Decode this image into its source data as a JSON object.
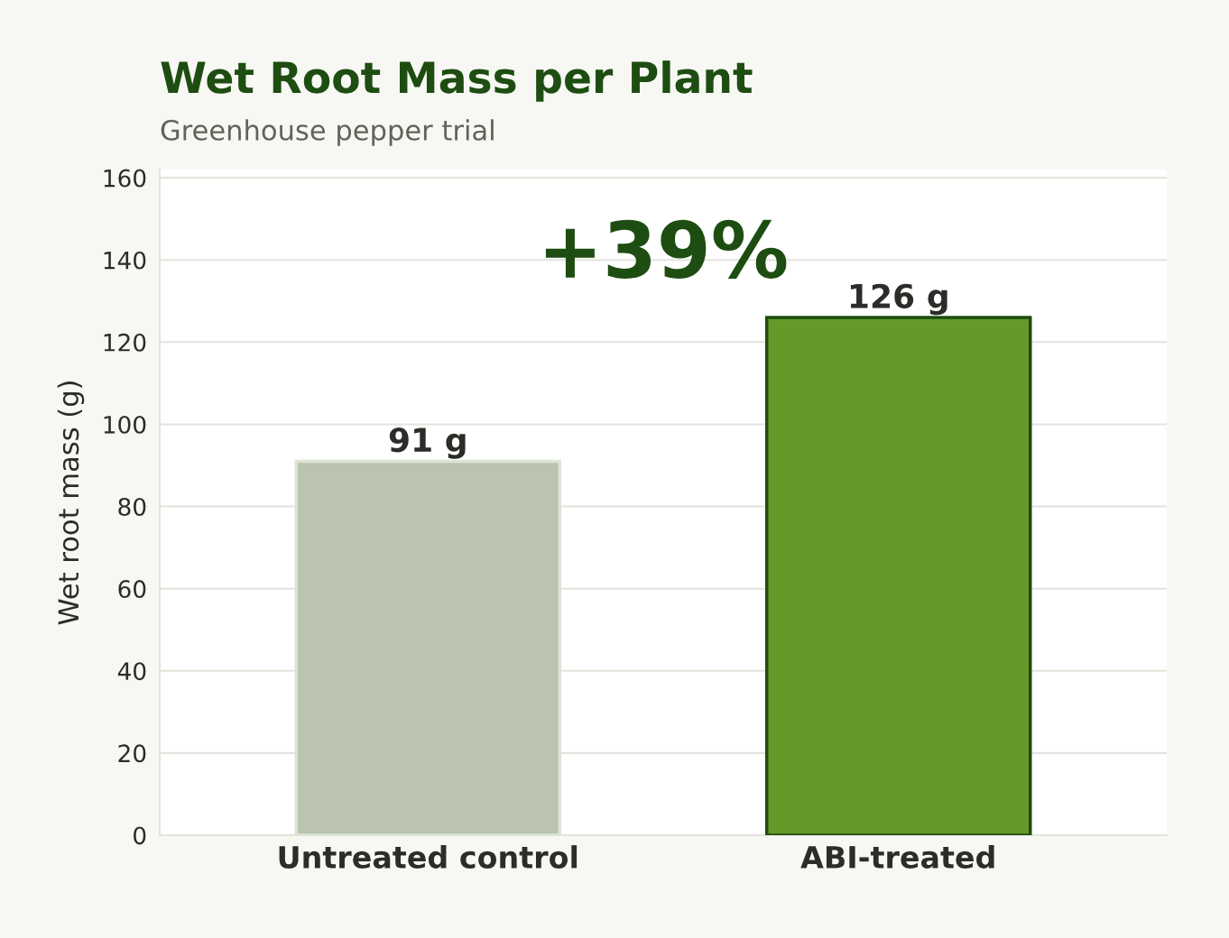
{
  "chart_data": {
    "type": "bar",
    "title": "Wet Root Mass per Plant",
    "subtitle": "Greenhouse pepper trial",
    "ylabel": "Wet root mass (g)",
    "categories": [
      "Untreated control",
      "ABI-treated"
    ],
    "values": [
      91,
      126
    ],
    "colors": [
      "#bac4ae",
      "#65992a"
    ],
    "value_labels": [
      "91 g",
      "126 g"
    ],
    "annotations": [
      "+39%"
    ],
    "ylim": [
      0,
      162
    ],
    "yticks": [
      0,
      20,
      40,
      60,
      80,
      100,
      120,
      140,
      160
    ],
    "grid": "y"
  }
}
